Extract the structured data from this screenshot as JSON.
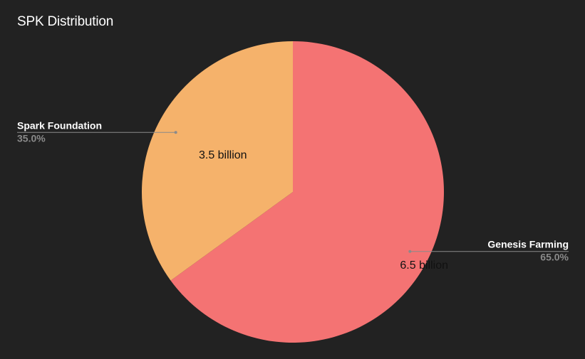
{
  "chart_data": {
    "type": "pie",
    "title": "SPK Distribution",
    "slices": [
      {
        "name": "Genesis Farming",
        "value_label": "6.5 billion",
        "value": 6.5,
        "percent_label": "65.0%",
        "percent": 65.0,
        "color": "#f47373"
      },
      {
        "name": "Spark Foundation",
        "value_label": "3.5 billion",
        "value": 3.5,
        "percent_label": "35.0%",
        "percent": 35.0,
        "color": "#f5b26b"
      }
    ],
    "start_angle": "12 o'clock, clockwise",
    "legend": "callout labels beside slices",
    "colors": {
      "background": "#222222",
      "leader_line": "#8a8a8a",
      "value_text": "#111111",
      "name_text": "#ffffff",
      "percent_text": "#8a8a8a"
    }
  }
}
